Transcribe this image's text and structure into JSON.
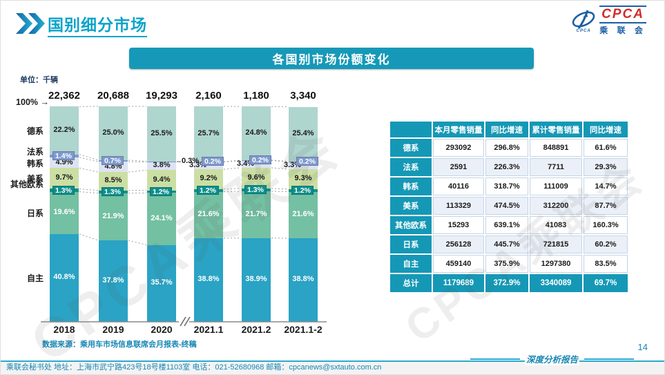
{
  "header": {
    "title": "国别细分市场"
  },
  "logo": {
    "acronym": "CPCA",
    "cn": "乘 联 会",
    "mark_caption": "CPCA"
  },
  "subtitle": "各国别市场份额变化",
  "watermark": "CPCA乘联会",
  "colors": {
    "accent_teal": "#1598B6",
    "title_cyan": "#0BA3C9",
    "footer_text": "#1787B5",
    "dashed_line": "#A0A0A0"
  },
  "chart_data": {
    "type": "bar",
    "stacked": true,
    "title": "各国别市场份额变化",
    "unit_label": "单位：千辆",
    "axis_note": "100% →",
    "categories": [
      "2018",
      "2019",
      "2020",
      "2021.1",
      "2021.2",
      "2021.1-2"
    ],
    "totals": [
      "22,362",
      "20,688",
      "19,293",
      "2,160",
      "1,180",
      "3,340"
    ],
    "ylim": [
      0,
      100
    ],
    "series": [
      {
        "name": "自主",
        "color": "#2AA3C4",
        "values": [
          40.8,
          37.8,
          35.7,
          38.8,
          38.9,
          38.8
        ]
      },
      {
        "name": "日系",
        "color": "#74C0A2",
        "values": [
          19.6,
          21.9,
          24.1,
          21.6,
          21.7,
          21.6
        ]
      },
      {
        "name": "其他欧系",
        "color": "#0E8E8B",
        "values": [
          1.3,
          1.3,
          1.2,
          1.2,
          1.3,
          1.2
        ]
      },
      {
        "name": "美系",
        "color": "#CBDFA4",
        "values": [
          9.7,
          8.5,
          9.4,
          9.2,
          9.6,
          9.3
        ]
      },
      {
        "name": "韩系",
        "color": "#DCE3F2",
        "values": [
          4.9,
          4.8,
          3.8,
          3.3,
          3.4,
          3.3
        ]
      },
      {
        "name": "法系",
        "color": "#7E99CC",
        "values": [
          1.4,
          0.7,
          0.3,
          0.2,
          0.2,
          0.2
        ]
      },
      {
        "name": "德系",
        "color": "#AFD5CF",
        "values": [
          22.2,
          25.0,
          25.5,
          25.7,
          24.8,
          25.4
        ]
      }
    ],
    "source": "数据来源：乘用车市场信息联席会月报表-终稿"
  },
  "table": {
    "headers": [
      "",
      "本月零售销量",
      "同比增速",
      "累计零售销量",
      "同比增速"
    ],
    "rows": [
      {
        "label": "德系",
        "cells": [
          "293092",
          "296.8%",
          "848891",
          "61.6%"
        ]
      },
      {
        "label": "法系",
        "cells": [
          "2591",
          "226.3%",
          "7711",
          "29.3%"
        ]
      },
      {
        "label": "韩系",
        "cells": [
          "40116",
          "318.7%",
          "111009",
          "14.7%"
        ]
      },
      {
        "label": "美系",
        "cells": [
          "113329",
          "474.5%",
          "312200",
          "87.7%"
        ]
      },
      {
        "label": "其他欧系",
        "cells": [
          "15293",
          "639.1%",
          "41083",
          "160.3%"
        ]
      },
      {
        "label": "日系",
        "cells": [
          "256128",
          "445.7%",
          "721815",
          "60.2%"
        ]
      },
      {
        "label": "自主",
        "cells": [
          "459140",
          "375.9%",
          "1297380",
          "83.5%"
        ]
      },
      {
        "label": "总计",
        "cells": [
          "1179689",
          "372.9%",
          "3340089",
          "69.7%"
        ],
        "highlight": true
      }
    ]
  },
  "footer": {
    "text": "乘联会秘书处  地址：上海市武宁路423号18号楼1103室  电话：021-52680968  邮箱：cpcanews@sxtauto.com.cn",
    "report_label": "深度分析报告",
    "page_number": "14"
  }
}
